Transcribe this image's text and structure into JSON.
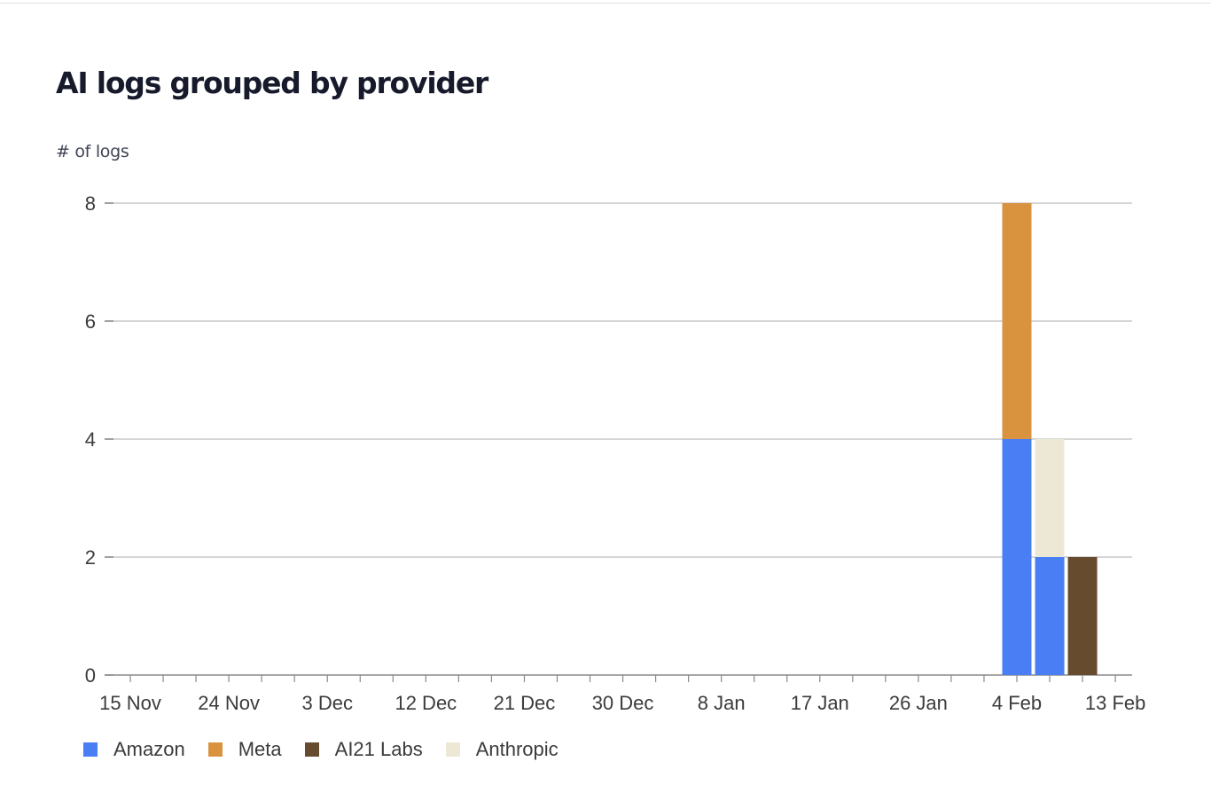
{
  "title": "AI logs grouped by provider",
  "chart_data": {
    "type": "bar",
    "stacked": true,
    "title": "AI logs grouped by provider",
    "ylabel": "# of logs",
    "xlabel": "",
    "ylim": [
      0,
      8
    ],
    "yticks": [
      0,
      2,
      4,
      6,
      8
    ],
    "xticks": [
      "15 Nov",
      "24 Nov",
      "3 Dec",
      "12 Dec",
      "21 Dec",
      "30 Dec",
      "8 Jan",
      "17 Jan",
      "26 Jan",
      "4 Feb",
      "13 Feb"
    ],
    "grid": true,
    "legend_position": "bottom-left",
    "categories": [
      "4 Feb",
      "7 Feb",
      "10 Feb"
    ],
    "series": [
      {
        "name": "Amazon",
        "color": "#4a7ef5",
        "values": [
          4,
          2,
          0
        ]
      },
      {
        "name": "Meta",
        "color": "#d9933f",
        "values": [
          4,
          0,
          0
        ]
      },
      {
        "name": "AI21 Labs",
        "color": "#674b2e",
        "values": [
          0,
          0,
          2
        ]
      },
      {
        "name": "Anthropic",
        "color": "#ede8d6",
        "values": [
          0,
          2,
          0
        ]
      }
    ]
  }
}
